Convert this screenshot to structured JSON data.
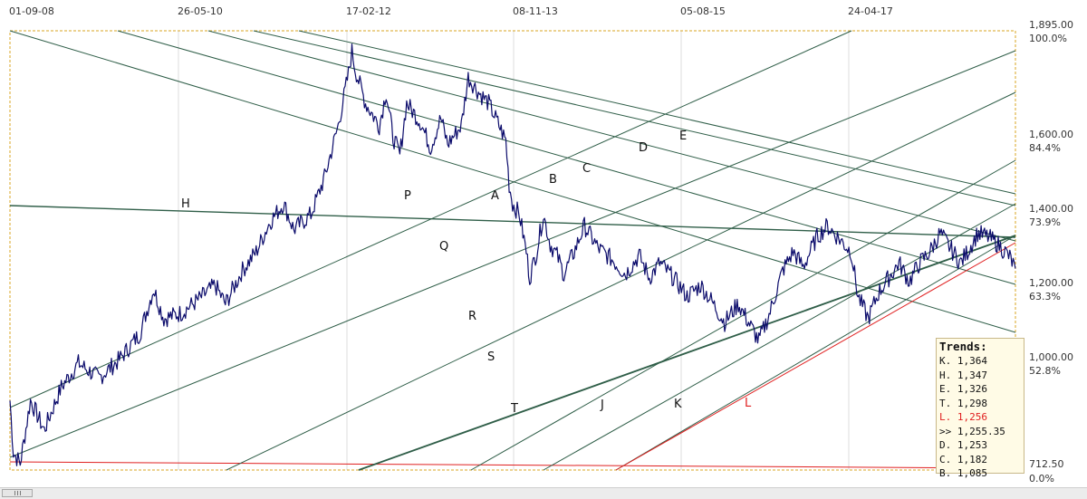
{
  "chart_data": {
    "type": "line",
    "x_tick_labels": [
      "01-09-08",
      "26-05-10",
      "17-02-12",
      "08-11-13",
      "05-08-15",
      "24-04-17"
    ],
    "y_ticks": [
      {
        "value": 1895,
        "label": "1,895.00",
        "pct": "100.0%"
      },
      {
        "value": 1600,
        "label": "1,600.00",
        "pct": "84.4%"
      },
      {
        "value": 1400,
        "label": "1,400.00",
        "pct": "73.9%"
      },
      {
        "value": 1200,
        "label": "1,200.00",
        "pct": "63.3%"
      },
      {
        "value": 1000,
        "label": "1,000.00",
        "pct": "52.8%"
      },
      {
        "value": 712.5,
        "label": "712.50",
        "pct": "0.0%"
      }
    ],
    "ylim": [
      712.5,
      1895
    ],
    "price_color": "#0b0b6b",
    "line_color": "#2f5e48",
    "red_line_color": "#e02020",
    "price_anchors": [
      [
        2008.0,
        900
      ],
      [
        2008.05,
        760
      ],
      [
        2008.15,
        730
      ],
      [
        2008.3,
        900
      ],
      [
        2008.5,
        820
      ],
      [
        2008.75,
        935
      ],
      [
        2009.0,
        1000
      ],
      [
        2009.3,
        960
      ],
      [
        2009.6,
        1010
      ],
      [
        2009.9,
        1080
      ],
      [
        2010.0,
        1140
      ],
      [
        2010.1,
        1200
      ],
      [
        2010.25,
        1120
      ],
      [
        2010.5,
        1135
      ],
      [
        2010.75,
        1170
      ],
      [
        2011.0,
        1210
      ],
      [
        2011.15,
        1160
      ],
      [
        2011.4,
        1250
      ],
      [
        2011.6,
        1300
      ],
      [
        2011.8,
        1380
      ],
      [
        2012.0,
        1430
      ],
      [
        2012.15,
        1360
      ],
      [
        2012.4,
        1400
      ],
      [
        2012.6,
        1500
      ],
      [
        2012.8,
        1640
      ],
      [
        2012.95,
        1780
      ],
      [
        2013.0,
        1840
      ],
      [
        2013.05,
        1790
      ],
      [
        2013.2,
        1700
      ],
      [
        2013.4,
        1640
      ],
      [
        2013.5,
        1730
      ],
      [
        2013.6,
        1610
      ],
      [
        2013.7,
        1560
      ],
      [
        2013.8,
        1700
      ],
      [
        2014.0,
        1650
      ],
      [
        2014.15,
        1580
      ],
      [
        2014.3,
        1660
      ],
      [
        2014.4,
        1590
      ],
      [
        2014.6,
        1640
      ],
      [
        2014.7,
        1770
      ],
      [
        2014.85,
        1730
      ],
      [
        2015.0,
        1700
      ],
      [
        2015.15,
        1640
      ],
      [
        2015.25,
        1600
      ],
      [
        2015.3,
        1480
      ],
      [
        2015.35,
        1430
      ],
      [
        2015.45,
        1400
      ],
      [
        2015.55,
        1300
      ],
      [
        2015.6,
        1230
      ],
      [
        2015.7,
        1300
      ],
      [
        2015.8,
        1400
      ],
      [
        2015.9,
        1320
      ],
      [
        2016.0,
        1290
      ],
      [
        2016.1,
        1240
      ],
      [
        2016.25,
        1300
      ],
      [
        2016.4,
        1370
      ],
      [
        2016.6,
        1310
      ],
      [
        2016.8,
        1280
      ],
      [
        2017.0,
        1240
      ],
      [
        2017.2,
        1290
      ],
      [
        2017.35,
        1230
      ],
      [
        2017.5,
        1270
      ],
      [
        2017.7,
        1230
      ],
      [
        2017.9,
        1180
      ],
      [
        2018.1,
        1210
      ],
      [
        2018.25,
        1170
      ],
      [
        2018.45,
        1110
      ],
      [
        2018.65,
        1160
      ],
      [
        2018.8,
        1110
      ],
      [
        2018.95,
        1060
      ],
      [
        2019.1,
        1130
      ],
      [
        2019.3,
        1250
      ],
      [
        2019.45,
        1300
      ],
      [
        2019.6,
        1260
      ],
      [
        2019.8,
        1340
      ],
      [
        2019.95,
        1370
      ],
      [
        2020.1,
        1340
      ],
      [
        2020.3,
        1300
      ],
      [
        2020.4,
        1180
      ],
      [
        2020.55,
        1120
      ],
      [
        2020.7,
        1190
      ],
      [
        2020.85,
        1230
      ],
      [
        2021.0,
        1270
      ],
      [
        2021.15,
        1220
      ],
      [
        2021.3,
        1270
      ],
      [
        2021.45,
        1300
      ],
      [
        2021.6,
        1350
      ],
      [
        2021.75,
        1310
      ],
      [
        2021.9,
        1270
      ],
      [
        2022.0,
        1300
      ],
      [
        2022.15,
        1350
      ],
      [
        2022.3,
        1340
      ],
      [
        2022.45,
        1320
      ],
      [
        2022.55,
        1300
      ],
      [
        2022.62,
        1285
      ],
      [
        2022.7,
        1255
      ]
    ],
    "line_labels": [
      "H",
      "P",
      "A",
      "B",
      "C",
      "D",
      "E",
      "Q",
      "R",
      "S",
      "T",
      "J",
      "K",
      "L"
    ]
  },
  "trends": {
    "title": "Trends:",
    "rows": [
      {
        "text": "K. 1,364",
        "color": "#111111"
      },
      {
        "text": "H. 1,347",
        "color": "#111111"
      },
      {
        "text": "E. 1,326",
        "color": "#111111"
      },
      {
        "text": "T. 1,298",
        "color": "#111111"
      },
      {
        "text": "L. 1,256",
        "color": "#e02020"
      },
      {
        "text": ">> 1,255.35",
        "color": "#111111"
      },
      {
        "text": "D. 1,253",
        "color": "#111111"
      },
      {
        "text": "C. 1,182",
        "color": "#111111"
      },
      {
        "text": "B. 1,085",
        "color": "#111111"
      }
    ]
  }
}
